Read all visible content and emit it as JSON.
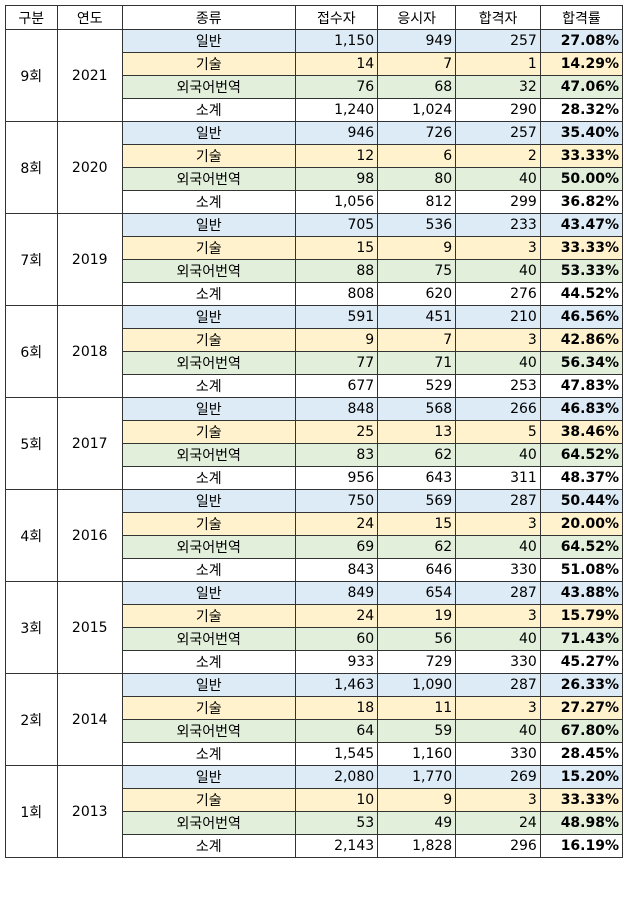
{
  "header": {
    "gubun": "구분",
    "year": "연도",
    "type": "종류",
    "applicants": "접수자",
    "examinees": "응시자",
    "passers": "합격자",
    "rate": "합격률"
  },
  "groups": [
    {
      "round": "9회",
      "year": "2021",
      "rows": [
        {
          "type": "일반",
          "applicants": "1,150",
          "examinees": "949",
          "passers": "257",
          "rate": "27.08%"
        },
        {
          "type": "기술",
          "applicants": "14",
          "examinees": "7",
          "passers": "1",
          "rate": "14.29%"
        },
        {
          "type": "외국어번역",
          "applicants": "76",
          "examinees": "68",
          "passers": "32",
          "rate": "47.06%"
        },
        {
          "type": "소계",
          "applicants": "1,240",
          "examinees": "1,024",
          "passers": "290",
          "rate": "28.32%"
        }
      ]
    },
    {
      "round": "8회",
      "year": "2020",
      "rows": [
        {
          "type": "일반",
          "applicants": "946",
          "examinees": "726",
          "passers": "257",
          "rate": "35.40%"
        },
        {
          "type": "기술",
          "applicants": "12",
          "examinees": "6",
          "passers": "2",
          "rate": "33.33%"
        },
        {
          "type": "외국어번역",
          "applicants": "98",
          "examinees": "80",
          "passers": "40",
          "rate": "50.00%"
        },
        {
          "type": "소계",
          "applicants": "1,056",
          "examinees": "812",
          "passers": "299",
          "rate": "36.82%"
        }
      ]
    },
    {
      "round": "7회",
      "year": "2019",
      "rows": [
        {
          "type": "일반",
          "applicants": "705",
          "examinees": "536",
          "passers": "233",
          "rate": "43.47%"
        },
        {
          "type": "기술",
          "applicants": "15",
          "examinees": "9",
          "passers": "3",
          "rate": "33.33%"
        },
        {
          "type": "외국어번역",
          "applicants": "88",
          "examinees": "75",
          "passers": "40",
          "rate": "53.33%"
        },
        {
          "type": "소계",
          "applicants": "808",
          "examinees": "620",
          "passers": "276",
          "rate": "44.52%"
        }
      ]
    },
    {
      "round": "6회",
      "year": "2018",
      "rows": [
        {
          "type": "일반",
          "applicants": "591",
          "examinees": "451",
          "passers": "210",
          "rate": "46.56%"
        },
        {
          "type": "기술",
          "applicants": "9",
          "examinees": "7",
          "passers": "3",
          "rate": "42.86%"
        },
        {
          "type": "외국어번역",
          "applicants": "77",
          "examinees": "71",
          "passers": "40",
          "rate": "56.34%"
        },
        {
          "type": "소계",
          "applicants": "677",
          "examinees": "529",
          "passers": "253",
          "rate": "47.83%"
        }
      ]
    },
    {
      "round": "5회",
      "year": "2017",
      "rows": [
        {
          "type": "일반",
          "applicants": "848",
          "examinees": "568",
          "passers": "266",
          "rate": "46.83%"
        },
        {
          "type": "기술",
          "applicants": "25",
          "examinees": "13",
          "passers": "5",
          "rate": "38.46%"
        },
        {
          "type": "외국어번역",
          "applicants": "83",
          "examinees": "62",
          "passers": "40",
          "rate": "64.52%"
        },
        {
          "type": "소계",
          "applicants": "956",
          "examinees": "643",
          "passers": "311",
          "rate": "48.37%"
        }
      ]
    },
    {
      "round": "4회",
      "year": "2016",
      "rows": [
        {
          "type": "일반",
          "applicants": "750",
          "examinees": "569",
          "passers": "287",
          "rate": "50.44%"
        },
        {
          "type": "기술",
          "applicants": "24",
          "examinees": "15",
          "passers": "3",
          "rate": "20.00%"
        },
        {
          "type": "외국어번역",
          "applicants": "69",
          "examinees": "62",
          "passers": "40",
          "rate": "64.52%"
        },
        {
          "type": "소계",
          "applicants": "843",
          "examinees": "646",
          "passers": "330",
          "rate": "51.08%"
        }
      ]
    },
    {
      "round": "3회",
      "year": "2015",
      "rows": [
        {
          "type": "일반",
          "applicants": "849",
          "examinees": "654",
          "passers": "287",
          "rate": "43.88%"
        },
        {
          "type": "기술",
          "applicants": "24",
          "examinees": "19",
          "passers": "3",
          "rate": "15.79%"
        },
        {
          "type": "외국어번역",
          "applicants": "60",
          "examinees": "56",
          "passers": "40",
          "rate": "71.43%"
        },
        {
          "type": "소계",
          "applicants": "933",
          "examinees": "729",
          "passers": "330",
          "rate": "45.27%"
        }
      ]
    },
    {
      "round": "2회",
      "year": "2014",
      "rows": [
        {
          "type": "일반",
          "applicants": "1,463",
          "examinees": "1,090",
          "passers": "287",
          "rate": "26.33%"
        },
        {
          "type": "기술",
          "applicants": "18",
          "examinees": "11",
          "passers": "3",
          "rate": "27.27%"
        },
        {
          "type": "외국어번역",
          "applicants": "64",
          "examinees": "59",
          "passers": "40",
          "rate": "67.80%"
        },
        {
          "type": "소계",
          "applicants": "1,545",
          "examinees": "1,160",
          "passers": "330",
          "rate": "28.45%"
        }
      ]
    },
    {
      "round": "1회",
      "year": "2013",
      "rows": [
        {
          "type": "일반",
          "applicants": "2,080",
          "examinees": "1,770",
          "passers": "269",
          "rate": "15.20%"
        },
        {
          "type": "기술",
          "applicants": "10",
          "examinees": "9",
          "passers": "3",
          "rate": "33.33%"
        },
        {
          "type": "외국어번역",
          "applicants": "53",
          "examinees": "49",
          "passers": "24",
          "rate": "48.98%"
        },
        {
          "type": "소계",
          "applicants": "2,143",
          "examinees": "1,828",
          "passers": "296",
          "rate": "16.19%"
        }
      ]
    }
  ]
}
